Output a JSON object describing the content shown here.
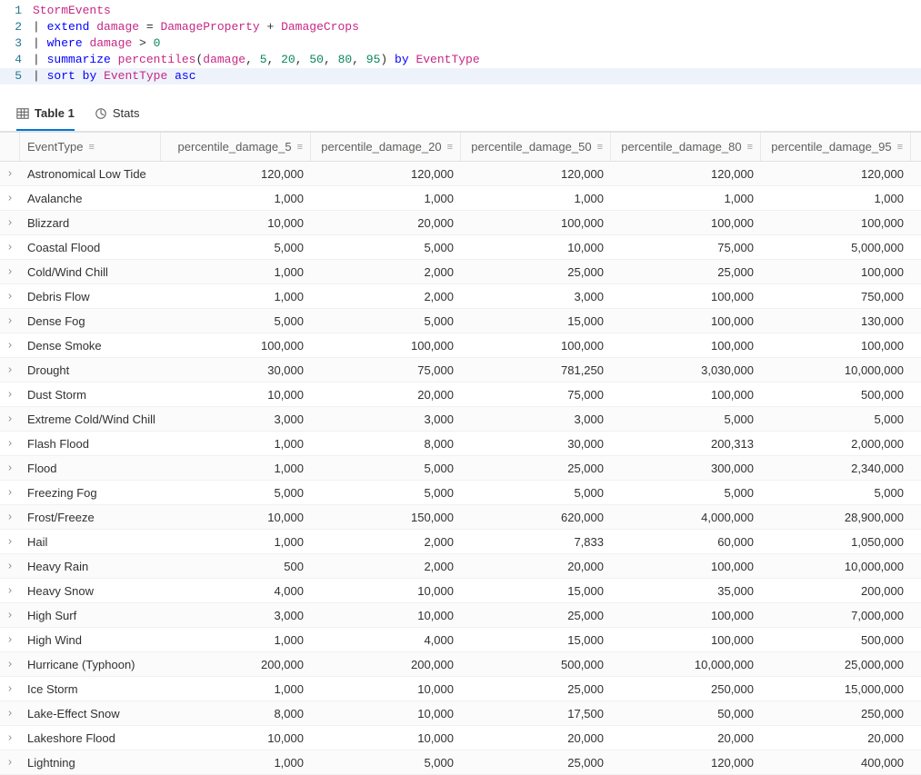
{
  "editor": {
    "lines": [
      {
        "n": "1",
        "tokens": [
          {
            "t": "StormEvents",
            "c": "tok-id"
          }
        ]
      },
      {
        "n": "2",
        "tokens": [
          {
            "t": "| ",
            "c": "tok-pipe"
          },
          {
            "t": "extend",
            "c": "tok-kw"
          },
          {
            "t": " ",
            "c": "tok-plain"
          },
          {
            "t": "damage",
            "c": "tok-id"
          },
          {
            "t": " = ",
            "c": "tok-op"
          },
          {
            "t": "DamageProperty",
            "c": "tok-id"
          },
          {
            "t": " + ",
            "c": "tok-op"
          },
          {
            "t": "DamageCrops",
            "c": "tok-id"
          }
        ]
      },
      {
        "n": "3",
        "tokens": [
          {
            "t": "| ",
            "c": "tok-pipe"
          },
          {
            "t": "where",
            "c": "tok-kw"
          },
          {
            "t": " ",
            "c": "tok-plain"
          },
          {
            "t": "damage",
            "c": "tok-id"
          },
          {
            "t": " > ",
            "c": "tok-op"
          },
          {
            "t": "0",
            "c": "tok-num"
          }
        ]
      },
      {
        "n": "4",
        "tokens": [
          {
            "t": "| ",
            "c": "tok-pipe"
          },
          {
            "t": "summarize",
            "c": "tok-kw"
          },
          {
            "t": " ",
            "c": "tok-plain"
          },
          {
            "t": "percentiles",
            "c": "tok-id"
          },
          {
            "t": "(",
            "c": "tok-op"
          },
          {
            "t": "damage",
            "c": "tok-id"
          },
          {
            "t": ", ",
            "c": "tok-op"
          },
          {
            "t": "5",
            "c": "tok-num"
          },
          {
            "t": ", ",
            "c": "tok-op"
          },
          {
            "t": "20",
            "c": "tok-num"
          },
          {
            "t": ", ",
            "c": "tok-op"
          },
          {
            "t": "50",
            "c": "tok-num"
          },
          {
            "t": ", ",
            "c": "tok-op"
          },
          {
            "t": "80",
            "c": "tok-num"
          },
          {
            "t": ", ",
            "c": "tok-op"
          },
          {
            "t": "95",
            "c": "tok-num"
          },
          {
            "t": ")",
            "c": "tok-op"
          },
          {
            "t": " ",
            "c": "tok-plain"
          },
          {
            "t": "by",
            "c": "tok-kw"
          },
          {
            "t": " ",
            "c": "tok-plain"
          },
          {
            "t": "EventType",
            "c": "tok-id"
          }
        ]
      },
      {
        "n": "5",
        "active": true,
        "tokens": [
          {
            "t": "| ",
            "c": "tok-pipe"
          },
          {
            "t": "sort",
            "c": "tok-kw"
          },
          {
            "t": " ",
            "c": "tok-plain"
          },
          {
            "t": "by",
            "c": "tok-kw"
          },
          {
            "t": " ",
            "c": "tok-plain"
          },
          {
            "t": "EventType",
            "c": "tok-id"
          },
          {
            "t": " ",
            "c": "tok-plain"
          },
          {
            "t": "asc",
            "c": "tok-kw"
          }
        ]
      }
    ]
  },
  "tabs": {
    "table_label": "Table 1",
    "stats_label": "Stats"
  },
  "grid": {
    "columns": [
      {
        "label": "EventType",
        "align": "left"
      },
      {
        "label": "percentile_damage_5",
        "align": "right"
      },
      {
        "label": "percentile_damage_20",
        "align": "right"
      },
      {
        "label": "percentile_damage_50",
        "align": "right"
      },
      {
        "label": "percentile_damage_80",
        "align": "right"
      },
      {
        "label": "percentile_damage_95",
        "align": "right"
      }
    ],
    "rows": [
      [
        "Astronomical Low Tide",
        "120,000",
        "120,000",
        "120,000",
        "120,000",
        "120,000"
      ],
      [
        "Avalanche",
        "1,000",
        "1,000",
        "1,000",
        "1,000",
        "1,000"
      ],
      [
        "Blizzard",
        "10,000",
        "20,000",
        "100,000",
        "100,000",
        "100,000"
      ],
      [
        "Coastal Flood",
        "5,000",
        "5,000",
        "10,000",
        "75,000",
        "5,000,000"
      ],
      [
        "Cold/Wind Chill",
        "1,000",
        "2,000",
        "25,000",
        "25,000",
        "100,000"
      ],
      [
        "Debris Flow",
        "1,000",
        "2,000",
        "3,000",
        "100,000",
        "750,000"
      ],
      [
        "Dense Fog",
        "5,000",
        "5,000",
        "15,000",
        "100,000",
        "130,000"
      ],
      [
        "Dense Smoke",
        "100,000",
        "100,000",
        "100,000",
        "100,000",
        "100,000"
      ],
      [
        "Drought",
        "30,000",
        "75,000",
        "781,250",
        "3,030,000",
        "10,000,000"
      ],
      [
        "Dust Storm",
        "10,000",
        "20,000",
        "75,000",
        "100,000",
        "500,000"
      ],
      [
        "Extreme Cold/Wind Chill",
        "3,000",
        "3,000",
        "3,000",
        "5,000",
        "5,000"
      ],
      [
        "Flash Flood",
        "1,000",
        "8,000",
        "30,000",
        "200,313",
        "2,000,000"
      ],
      [
        "Flood",
        "1,000",
        "5,000",
        "25,000",
        "300,000",
        "2,340,000"
      ],
      [
        "Freezing Fog",
        "5,000",
        "5,000",
        "5,000",
        "5,000",
        "5,000"
      ],
      [
        "Frost/Freeze",
        "10,000",
        "150,000",
        "620,000",
        "4,000,000",
        "28,900,000"
      ],
      [
        "Hail",
        "1,000",
        "2,000",
        "7,833",
        "60,000",
        "1,050,000"
      ],
      [
        "Heavy Rain",
        "500",
        "2,000",
        "20,000",
        "100,000",
        "10,000,000"
      ],
      [
        "Heavy Snow",
        "4,000",
        "10,000",
        "15,000",
        "35,000",
        "200,000"
      ],
      [
        "High Surf",
        "3,000",
        "10,000",
        "25,000",
        "100,000",
        "7,000,000"
      ],
      [
        "High Wind",
        "1,000",
        "4,000",
        "15,000",
        "100,000",
        "500,000"
      ],
      [
        "Hurricane (Typhoon)",
        "200,000",
        "200,000",
        "500,000",
        "10,000,000",
        "25,000,000"
      ],
      [
        "Ice Storm",
        "1,000",
        "10,000",
        "25,000",
        "250,000",
        "15,000,000"
      ],
      [
        "Lake-Effect Snow",
        "8,000",
        "10,000",
        "17,500",
        "50,000",
        "250,000"
      ],
      [
        "Lakeshore Flood",
        "10,000",
        "10,000",
        "20,000",
        "20,000",
        "20,000"
      ],
      [
        "Lightning",
        "1,000",
        "5,000",
        "25,000",
        "120,000",
        "400,000"
      ]
    ]
  }
}
